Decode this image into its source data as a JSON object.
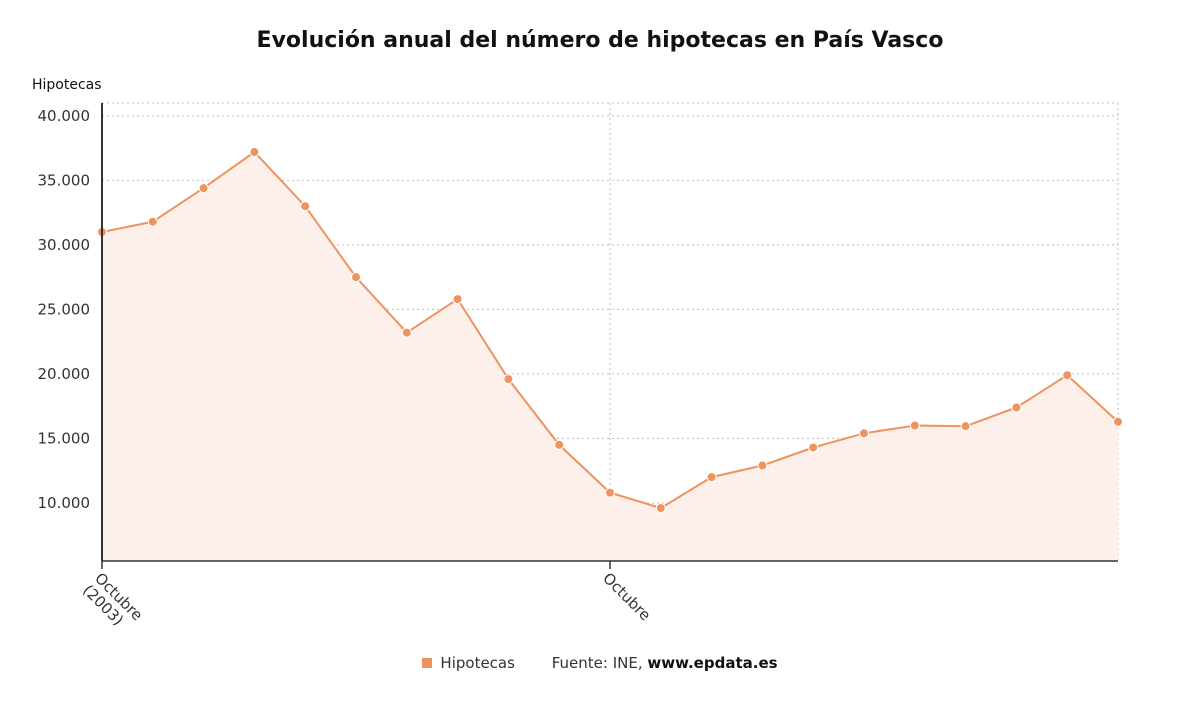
{
  "colors": {
    "series": "#ee935f",
    "fill": "#fdf0ea"
  },
  "legend": {
    "series_name": "Hipotecas",
    "source_label": "Fuente: INE,",
    "source_site": "www.epdata.es"
  },
  "chart_data": {
    "type": "line",
    "title": "Evolución anual del número de hipotecas en País Vasco",
    "ylabel": "Hipotecas",
    "xlabel": "",
    "ylim": [
      5500,
      41000
    ],
    "yticks": [
      10000,
      15000,
      20000,
      25000,
      30000,
      35000,
      40000
    ],
    "ytick_labels": [
      "10.000",
      "15.000",
      "20.000",
      "25.000",
      "30.000",
      "35.000",
      "40.000"
    ],
    "xticks": [
      {
        "index": 0,
        "label": [
          "Octubre",
          "(2003)"
        ]
      },
      {
        "index": 10,
        "label": [
          "Octubre"
        ]
      }
    ],
    "grid": true,
    "legend_position": "bottom",
    "series": [
      {
        "name": "Hipotecas",
        "values": [
          31000,
          31800,
          34400,
          37200,
          33000,
          27500,
          23200,
          25800,
          19600,
          14500,
          10800,
          9600,
          12000,
          12900,
          14300,
          15400,
          16000,
          15950,
          17400,
          19900,
          16300
        ]
      }
    ]
  }
}
